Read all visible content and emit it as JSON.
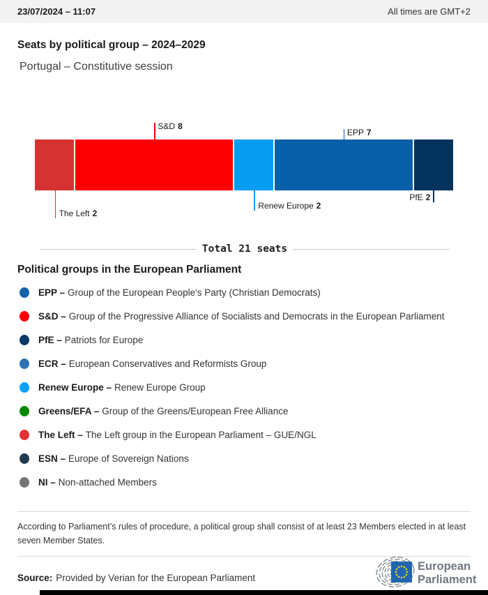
{
  "header": {
    "datetime": "23/07/2024 – 11:07",
    "timezone_note": "All times are GMT+2"
  },
  "title": "Seats by political group – 2024–2029",
  "subtitle": "Portugal – Constitutive session",
  "chart_data": {
    "type": "bar",
    "orientation": "horizontal-stacked",
    "title": "Seats by political group – 2024–2029",
    "total_seats": 21,
    "total_label": "Total 21 seats",
    "segments": [
      {
        "group": "The Left",
        "seats": 2,
        "color": "#d63232",
        "label_position": "below"
      },
      {
        "group": "S&D",
        "seats": 8,
        "color": "#fb0000",
        "label_position": "above"
      },
      {
        "group": "Renew Europe",
        "seats": 2,
        "color": "#069cf2",
        "label_position": "below"
      },
      {
        "group": "EPP",
        "seats": 7,
        "color": "#0a60a8",
        "label_position": "above"
      },
      {
        "group": "PfE",
        "seats": 2,
        "color": "#04335e",
        "label_position": "below"
      }
    ]
  },
  "legend": {
    "heading": "Political groups in the European Parliament",
    "items": [
      {
        "abbr": "EPP –",
        "name": "Group of the European People's Party (Christian Democrats)",
        "color": "#1562ac"
      },
      {
        "abbr": "S&D –",
        "name": "Group of the Progressive Alliance of Socialists and Democrats in the European Parliament",
        "color": "#fb0007"
      },
      {
        "abbr": "PfE –",
        "name": "Patriots for Europe",
        "color": "#0a3765"
      },
      {
        "abbr": "ECR –",
        "name": "European Conservatives and Reformists Group",
        "color": "#2e74b5"
      },
      {
        "abbr": "Renew Europe –",
        "name": "Renew Europe Group",
        "color": "#09a1f7"
      },
      {
        "abbr": "Greens/EFA –",
        "name": "Group of the Greens/European Free Alliance",
        "color": "#048a07"
      },
      {
        "abbr": "The Left –",
        "name": "The Left group in the European Parliament – GUE/NGL",
        "color": "#e33234"
      },
      {
        "abbr": "ESN –",
        "name": "Europe of Sovereign Nations",
        "color": "#223a50"
      },
      {
        "abbr": "NI –",
        "name": "Non-attached Members",
        "color": "#757575"
      }
    ]
  },
  "footnote": "According to Parliament’s rules of procedure, a political group shall consist of at least 23 Members elected in at least seven Member States.",
  "source": {
    "label": "Source:",
    "text": "Provided by Verian for the European Parliament"
  },
  "logo": {
    "line1": "European",
    "line2": "Parliament"
  }
}
